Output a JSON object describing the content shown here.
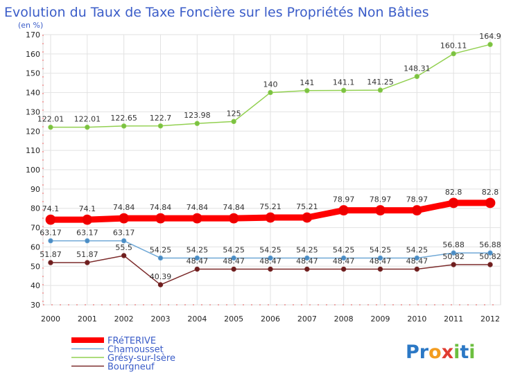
{
  "header": {
    "title": "Evolution du Taux de Taxe Foncière sur les Propriétés Non Bâties",
    "subtitle": "(en %)"
  },
  "chart_data": {
    "type": "line",
    "x": [
      "2000",
      "2001",
      "2002",
      "2003",
      "2004",
      "2005",
      "2006",
      "2007",
      "2008",
      "2009",
      "2010",
      "2011",
      "2012"
    ],
    "ylim": [
      30,
      170
    ],
    "yticks": [
      30,
      40,
      50,
      60,
      70,
      80,
      90,
      100,
      110,
      120,
      130,
      140,
      150,
      160,
      170
    ],
    "grid": true,
    "legend_position": "bottom-left",
    "series": [
      {
        "name": "Grésy-sur-Isère",
        "color": "#92d050",
        "marker": "#7ac142",
        "values": [
          122.01,
          122.01,
          122.65,
          122.7,
          123.98,
          125,
          140,
          141,
          141.1,
          141.25,
          148.31,
          160.11,
          164.9
        ],
        "labels": [
          "122.01",
          "122.01",
          "122.65",
          "122.7",
          "123.98",
          "125",
          "140",
          "141",
          "141.1",
          "141.25",
          "148.31",
          "160.11",
          "164.9"
        ]
      },
      {
        "name": "FRéTERIVE",
        "color": "#ff0000",
        "marker": "#ee0000",
        "values": [
          74.1,
          74.1,
          74.84,
          74.84,
          74.84,
          74.84,
          75.21,
          75.21,
          78.97,
          78.97,
          78.97,
          82.8,
          82.8
        ],
        "labels": [
          "74.1",
          "74.1",
          "74.84",
          "74.84",
          "74.84",
          "74.84",
          "75.21",
          "75.21",
          "78.97",
          "78.97",
          "78.97",
          "82.8",
          "82.8"
        ]
      },
      {
        "name": "Chamousset",
        "color": "#6fa8d6",
        "marker": "#4a8cc4",
        "values": [
          63.17,
          63.17,
          63.17,
          54.25,
          54.25,
          54.25,
          54.25,
          54.25,
          54.25,
          54.25,
          54.25,
          56.88,
          56.88
        ],
        "labels": [
          "63.17",
          "63.17",
          "63.17",
          "54.25",
          "54.25",
          "54.25",
          "54.25",
          "54.25",
          "54.25",
          "54.25",
          "54.25",
          "56.88",
          "56.88"
        ]
      },
      {
        "name": "Bourgneuf",
        "color": "#7b2a2a",
        "marker": "#6e1e1e",
        "values": [
          51.87,
          51.87,
          55.5,
          40.39,
          48.47,
          48.47,
          48.47,
          48.47,
          48.47,
          48.47,
          48.47,
          50.82,
          50.82
        ],
        "labels": [
          "51.87",
          "51.87",
          "55.5",
          "40.39",
          "48.47",
          "48.47",
          "48.47",
          "48.47",
          "48.47",
          "48.47",
          "48.47",
          "50.82",
          "50.82"
        ]
      }
    ]
  },
  "legend": {
    "items": [
      {
        "label": "FRéTERIVE",
        "color": "#ff0000"
      },
      {
        "label": "Chamousset",
        "color": "#6fa8d6"
      },
      {
        "label": "Grésy-sur-Isère",
        "color": "#92d050"
      },
      {
        "label": "Bourgneuf",
        "color": "#7b2a2a"
      }
    ]
  },
  "logo": {
    "text": "Proxiti",
    "letters": [
      {
        "ch": "P",
        "color": "#2b78c5"
      },
      {
        "ch": "r",
        "color": "#2b78c5"
      },
      {
        "ch": "o",
        "color": "#f39c1f"
      },
      {
        "ch": "x",
        "color": "#e03c31"
      },
      {
        "ch": "i",
        "color": "#6cbf3f"
      },
      {
        "ch": "t",
        "color": "#2b78c5"
      },
      {
        "ch": "i",
        "color": "#6cbf3f"
      }
    ]
  }
}
